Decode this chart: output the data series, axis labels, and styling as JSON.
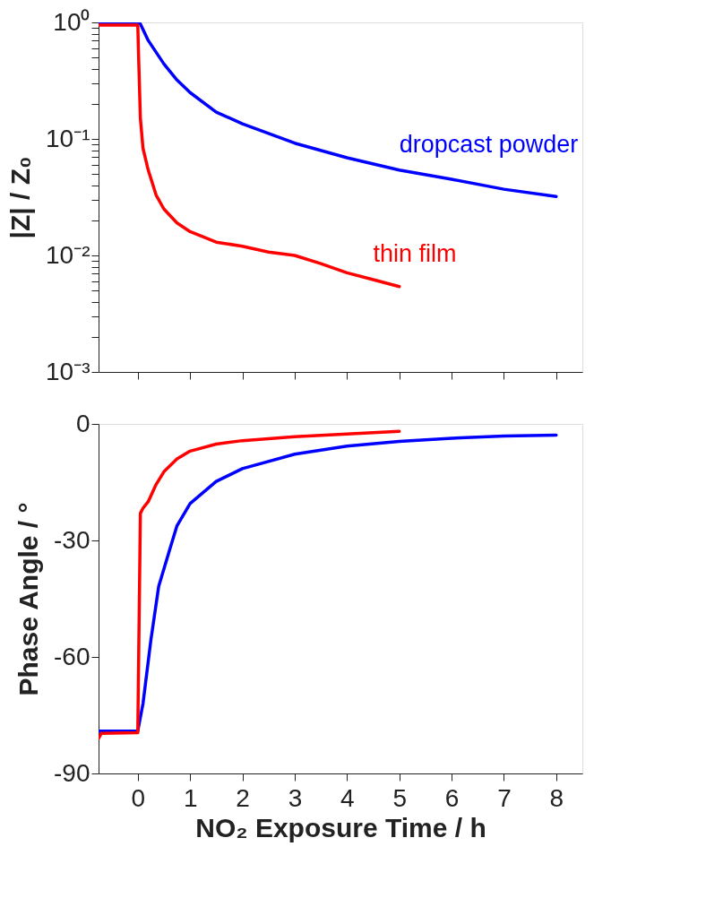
{
  "chart_data": [
    {
      "type": "line",
      "ylabel": "|Z| / Z₀",
      "log": "y",
      "grid": false,
      "tick_labels": "y",
      "line_style": "solid",
      "marker": "none",
      "xlim": [
        -0.75,
        8.5
      ],
      "xticks": [
        0,
        1,
        2,
        3,
        4,
        5,
        6,
        7,
        8
      ],
      "ylim": [
        0.001,
        1
      ],
      "yticks": [
        {
          "value": 1,
          "label": "10⁰"
        },
        {
          "value": 0.1,
          "label": "10⁻¹"
        },
        {
          "value": 0.01,
          "label": "10⁻²"
        },
        {
          "value": 0.001,
          "label": "10⁻³"
        },
        {
          "value": 0.9,
          "label": null
        },
        {
          "value": 0.8,
          "label": null
        },
        {
          "value": 0.7,
          "label": null
        },
        {
          "value": 0.6,
          "label": null
        },
        {
          "value": 0.5,
          "label": null
        },
        {
          "value": 0.4,
          "label": null
        },
        {
          "value": 0.3,
          "label": null
        },
        {
          "value": 0.2,
          "label": null
        },
        {
          "value": 0.09,
          "label": null
        },
        {
          "value": 0.08,
          "label": null
        },
        {
          "value": 0.07,
          "label": null
        },
        {
          "value": 0.06,
          "label": null
        },
        {
          "value": 0.05,
          "label": null
        },
        {
          "value": 0.04,
          "label": null
        },
        {
          "value": 0.03,
          "label": null
        },
        {
          "value": 0.02,
          "label": null
        },
        {
          "value": 0.009,
          "label": null
        },
        {
          "value": 0.008,
          "label": null
        },
        {
          "value": 0.007,
          "label": null
        },
        {
          "value": 0.006,
          "label": null
        },
        {
          "value": 0.005,
          "label": null
        },
        {
          "value": 0.004,
          "label": null
        },
        {
          "value": 0.003,
          "label": null
        },
        {
          "value": 0.002,
          "label": null
        }
      ],
      "series": [
        {
          "color": "#0000ff",
          "x": [
            -0.75,
            0,
            0.05,
            0.2,
            0.5,
            0.75,
            1,
            1.5,
            2,
            3,
            4,
            5,
            6,
            7,
            8
          ],
          "values": [
            1,
            1,
            0.97,
            0.7,
            0.44,
            0.32,
            0.25,
            0.17,
            0.135,
            0.092,
            0.069,
            0.054,
            0.045,
            0.037,
            0.032
          ]
        },
        {
          "color": "#ff0000",
          "x": [
            -0.75,
            0,
            0.02,
            0.05,
            0.1,
            0.2,
            0.35,
            0.5,
            0.75,
            1,
            1.5,
            2,
            2.5,
            3,
            3.5,
            4,
            4.5,
            5
          ],
          "values": [
            0.95,
            0.95,
            0.44,
            0.15,
            0.083,
            0.054,
            0.033,
            0.025,
            0.019,
            0.016,
            0.013,
            0.012,
            0.0107,
            0.01,
            0.0085,
            0.0071,
            0.0062,
            0.0054
          ]
        }
      ],
      "annotations": [
        "dropcast powder",
        "thin film"
      ]
    },
    {
      "type": "line",
      "xlabel": "NO₂ Exposure Time / h",
      "ylabel": "Phase Angle / °",
      "grid": false,
      "line_style": "solid",
      "marker": "none",
      "xlim": [
        -0.75,
        8.5
      ],
      "xticks": [
        0,
        1,
        2,
        3,
        4,
        5,
        6,
        7,
        8
      ],
      "ylim": [
        -90,
        0
      ],
      "yticks": [
        -90,
        -60,
        -30,
        0
      ],
      "series": [
        {
          "color": "#0000ff",
          "x": [
            -0.75,
            0,
            0.1,
            0.25,
            0.4,
            0.6,
            0.75,
            1,
            1.5,
            2,
            3,
            4,
            5,
            6,
            7,
            8
          ],
          "values": [
            -79.1,
            -79.1,
            -72,
            -55.7,
            -41.8,
            -32.8,
            -26.2,
            -20.5,
            -14.8,
            -11.5,
            -7.8,
            -5.7,
            -4.5,
            -3.7,
            -3.1,
            -2.9
          ]
        },
        {
          "color": "#ff0000",
          "x": [
            -0.75,
            -0.7,
            0,
            0.05,
            0.1,
            0.2,
            0.35,
            0.5,
            0.75,
            1,
            1.5,
            2,
            3,
            4,
            5
          ],
          "values": [
            -81,
            -79.7,
            -79.5,
            -23,
            -21.7,
            -20,
            -15.6,
            -12.3,
            -9,
            -7,
            -5.2,
            -4.3,
            -3.3,
            -2.6,
            -1.9
          ]
        }
      ]
    }
  ]
}
